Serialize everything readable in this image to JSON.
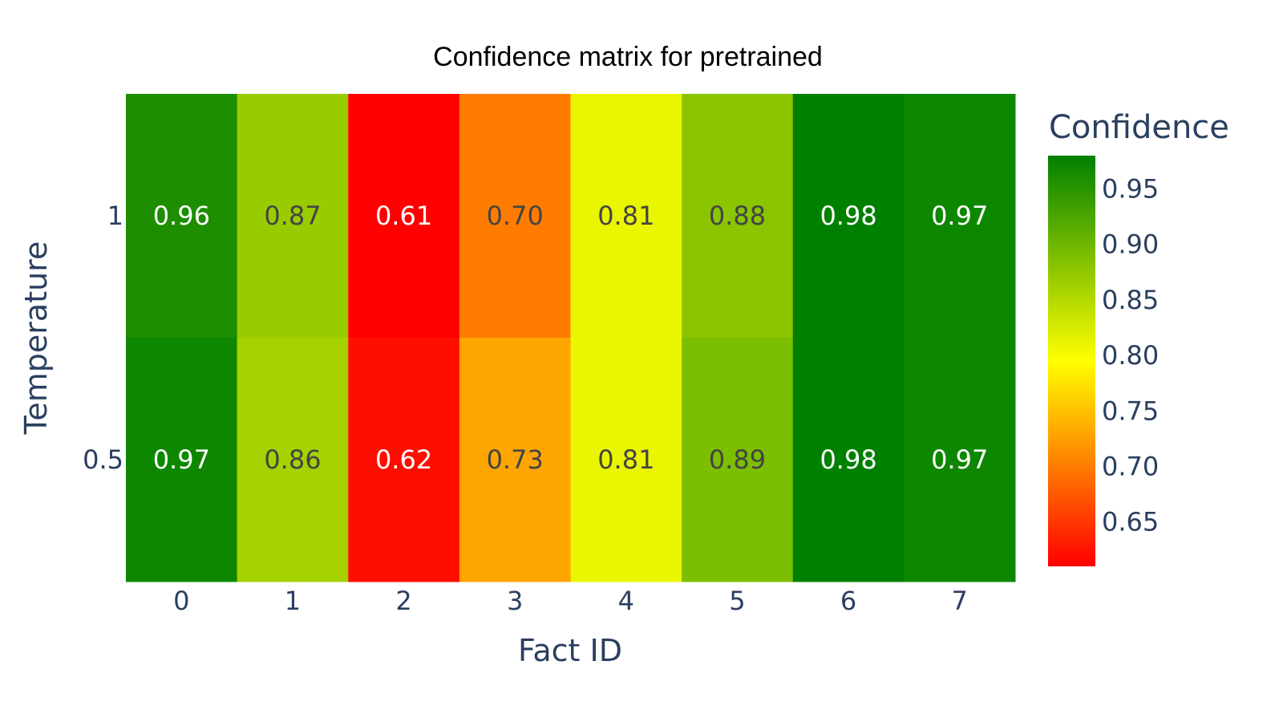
{
  "chart_data": {
    "type": "heatmap",
    "title": "Confidence matrix for pretrained",
    "xlabel": "Fact ID",
    "ylabel": "Temperature",
    "x": [
      "0",
      "1",
      "2",
      "3",
      "4",
      "5",
      "6",
      "7"
    ],
    "y": [
      "1",
      "0.5"
    ],
    "z": [
      [
        0.96,
        0.87,
        0.61,
        0.7,
        0.81,
        0.88,
        0.98,
        0.97
      ],
      [
        0.97,
        0.86,
        0.62,
        0.73,
        0.81,
        0.89,
        0.98,
        0.97
      ]
    ],
    "text": [
      [
        "0.96",
        "0.87",
        "0.61",
        "0.70",
        "0.81",
        "0.88",
        "0.98",
        "0.97"
      ],
      [
        "0.97",
        "0.86",
        "0.62",
        "0.73",
        "0.81",
        "0.89",
        "0.98",
        "0.97"
      ]
    ],
    "colorbar": {
      "title": "Confidence",
      "range": [
        0.61,
        0.98
      ],
      "ticks": [
        "0.65",
        "0.70",
        "0.75",
        "0.80",
        "0.85",
        "0.90",
        "0.95"
      ],
      "colorscale": [
        [
          0.0,
          "#ff0000"
        ],
        [
          0.5,
          "#ffff00"
        ],
        [
          1.0,
          "#008000"
        ]
      ]
    },
    "grid": false
  }
}
